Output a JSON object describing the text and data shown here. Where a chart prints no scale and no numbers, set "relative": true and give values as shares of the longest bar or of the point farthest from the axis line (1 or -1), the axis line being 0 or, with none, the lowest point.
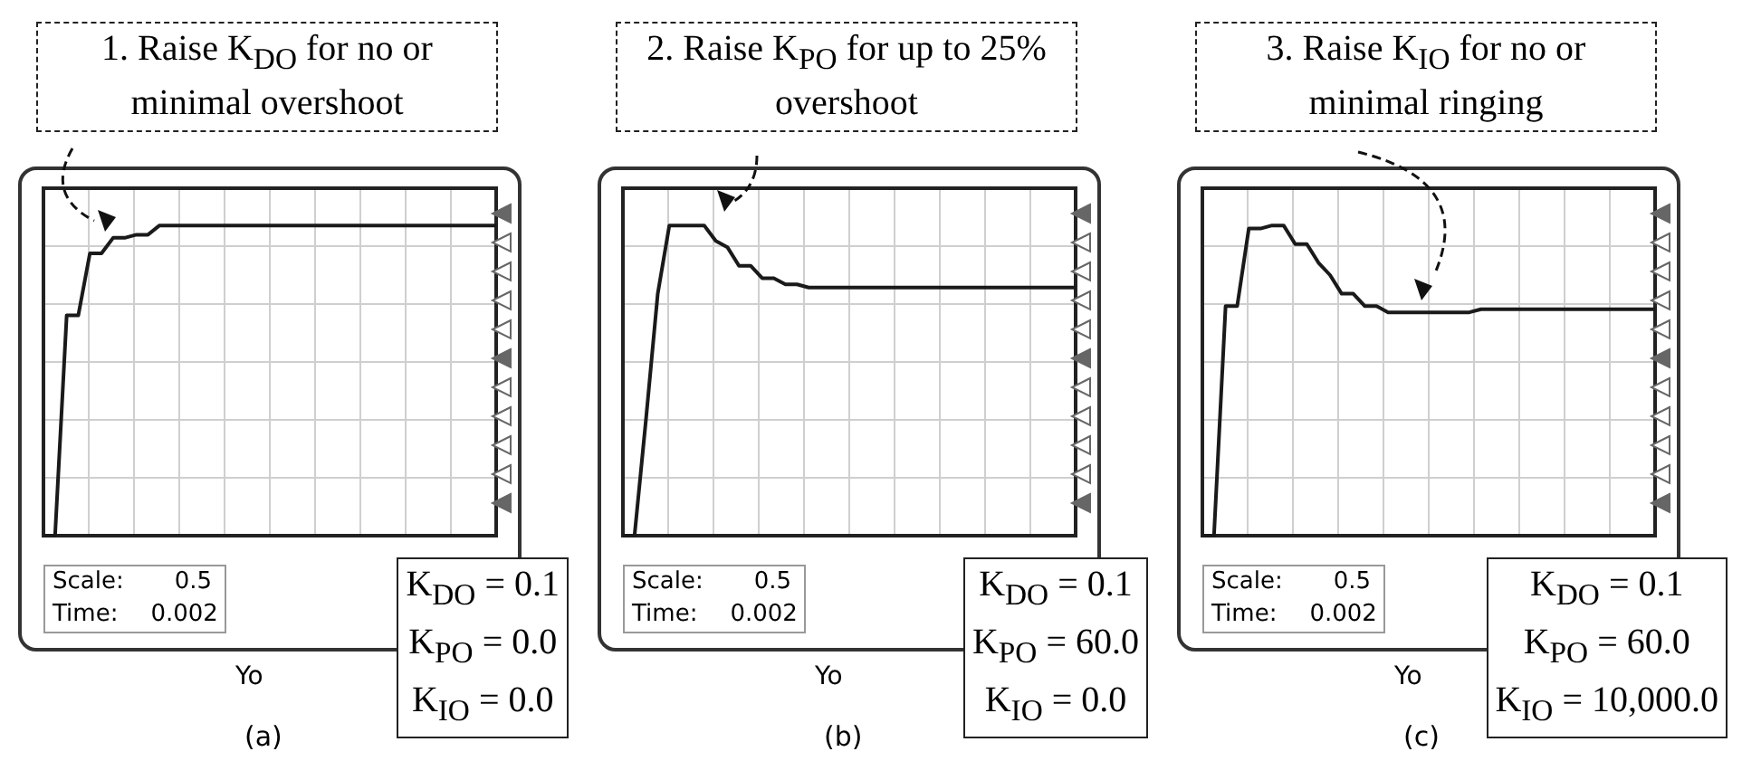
{
  "chart_data": [
    {
      "type": "line",
      "relative": true,
      "grid": true,
      "color": "#1a1a1a",
      "categories": [
        null,
        null,
        null,
        null,
        null,
        null,
        null,
        null,
        null,
        null,
        null,
        null,
        null,
        null,
        null,
        null,
        null,
        null,
        null,
        null,
        null,
        null,
        null,
        null,
        null,
        null,
        null,
        null,
        null,
        null,
        null,
        null,
        null,
        null,
        null,
        null,
        null,
        null,
        null,
        null
      ],
      "values": [
        0,
        0,
        0.71,
        0.71,
        0.91,
        0.91,
        0.96,
        0.96,
        0.97,
        0.97,
        1,
        1,
        1,
        1,
        1,
        1,
        1,
        1,
        1,
        1,
        1,
        1,
        1,
        1,
        1,
        1,
        1,
        1,
        1,
        1,
        1,
        1,
        1,
        1,
        1,
        1,
        1,
        1,
        1,
        1
      ],
      "annotations": [
        "1. Raise K$_{DO}$ for no or minimal overshoot",
        "Scale:",
        "0.5",
        "Time:",
        "0.002",
        "K$_{DO}$ = 0.1",
        "K$_{PO}$ = 0.0",
        "K$_{IO}$ = 0.0",
        "Yo",
        "(a)"
      ]
    },
    {
      "type": "line",
      "relative": true,
      "grid": true,
      "color": "#1a1a1a",
      "categories": [
        null,
        null,
        null,
        null,
        null,
        null,
        null,
        null,
        null,
        null,
        null,
        null,
        null,
        null,
        null,
        null,
        null,
        null,
        null,
        null,
        null,
        null,
        null,
        null,
        null,
        null,
        null,
        null,
        null,
        null,
        null,
        null,
        null,
        null,
        null,
        null,
        null,
        null,
        null,
        null
      ],
      "values": [
        0,
        0,
        0.38,
        0.78,
        1,
        1,
        1,
        1,
        0.95,
        0.93,
        0.87,
        0.87,
        0.83,
        0.83,
        0.81,
        0.81,
        0.8,
        0.8,
        0.8,
        0.8,
        0.8,
        0.8,
        0.8,
        0.8,
        0.8,
        0.8,
        0.8,
        0.8,
        0.8,
        0.8,
        0.8,
        0.8,
        0.8,
        0.8,
        0.8,
        0.8,
        0.8,
        0.8,
        0.8,
        0.8
      ],
      "annotations": [
        "2. Raise K$_{PO}$ for up to 25% overshoot",
        "Scale:",
        "0.5",
        "Time:",
        "0.002",
        "K$_{DO}$ = 0.1",
        "K$_{PO}$ = 60.0",
        "K$_{IO}$ = 0.0",
        "Yo",
        "(b)"
      ]
    },
    {
      "type": "line",
      "relative": true,
      "grid": true,
      "color": "#1a1a1a",
      "categories": [
        null,
        null,
        null,
        null,
        null,
        null,
        null,
        null,
        null,
        null,
        null,
        null,
        null,
        null,
        null,
        null,
        null,
        null,
        null,
        null,
        null,
        null,
        null,
        null,
        null,
        null,
        null,
        null,
        null,
        null,
        null,
        null,
        null,
        null,
        null,
        null,
        null,
        null,
        null,
        null
      ],
      "values": [
        0,
        0,
        0.74,
        0.74,
        0.99,
        0.99,
        1,
        1,
        0.94,
        0.94,
        0.88,
        0.84,
        0.78,
        0.78,
        0.74,
        0.74,
        0.72,
        0.72,
        0.72,
        0.72,
        0.72,
        0.72,
        0.72,
        0.72,
        0.73,
        0.73,
        0.73,
        0.73,
        0.73,
        0.73,
        0.73,
        0.73,
        0.73,
        0.73,
        0.73,
        0.73,
        0.73,
        0.73,
        0.73,
        0.73
      ],
      "annotations": [
        "3. Raise K$_{IO}$ for no or minimal ringing",
        "Scale:",
        "0.5",
        "Time:",
        "0.002",
        "K$_{DO}$ = 0.1",
        "K$_{PO}$ = 60.0",
        "K$_{IO}$ = 10,000.0",
        "Yo",
        "(c)"
      ]
    }
  ]
}
